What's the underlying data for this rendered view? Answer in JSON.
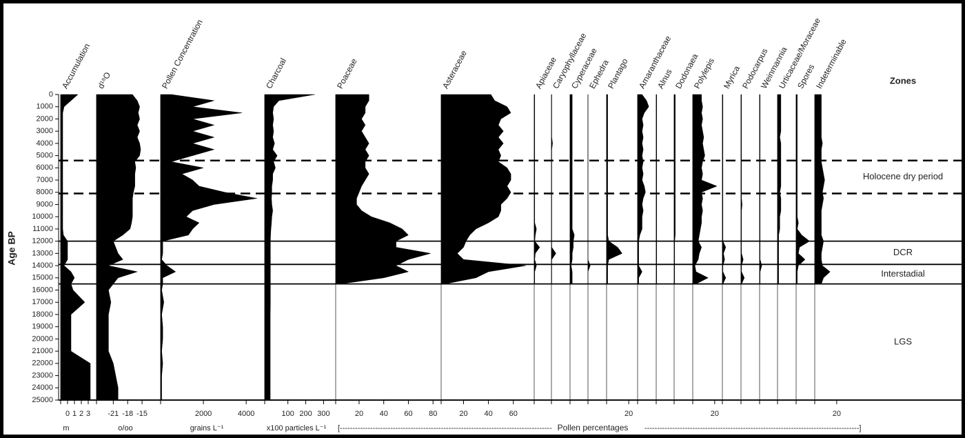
{
  "chart_data": {
    "type": "area",
    "y_label": "Age BP",
    "ylim": [
      0,
      25000
    ],
    "yticks": [
      0,
      1000,
      2000,
      3000,
      4000,
      5000,
      6000,
      7000,
      8000,
      9000,
      10000,
      11000,
      12000,
      13000,
      14000,
      15000,
      16000,
      17000,
      18000,
      19000,
      20000,
      21000,
      22000,
      23000,
      24000,
      25000
    ],
    "zones_title": "Zones",
    "zones": [
      {
        "name": "Holocene dry period",
        "from": 5400,
        "to": 8100,
        "dashed": true
      },
      {
        "name": "DCR",
        "from": 12000,
        "to": 13900,
        "dashed": false
      },
      {
        "name": "Interstadial",
        "from": 13900,
        "to": 15500,
        "dashed": false
      },
      {
        "name": "LGS",
        "from": 15500,
        "to": 25000,
        "dashed": false
      }
    ],
    "color": "#000000",
    "group_label": "Pollen percentages",
    "ages": [
      0,
      500,
      1000,
      1500,
      2000,
      2500,
      3000,
      3500,
      4000,
      4500,
      5000,
      5500,
      6000,
      6500,
      7000,
      7500,
      8000,
      8500,
      9000,
      9500,
      10000,
      10500,
      11000,
      11500,
      12000,
      12500,
      13000,
      13500,
      14000,
      14500,
      15000,
      15500,
      16000,
      17000,
      18000,
      19000,
      20000,
      21000,
      22000,
      23000,
      24000,
      25000
    ],
    "panels": [
      {
        "name": "Accumulation",
        "unit": "m",
        "xlim": [
          -1,
          3.5
        ],
        "xticks": [
          0,
          1,
          2,
          3
        ],
        "values": [
          1.5,
          0.5,
          -0.5,
          -0.7,
          -0.7,
          -0.7,
          -0.7,
          -0.7,
          -0.7,
          -0.7,
          -0.7,
          -0.7,
          -0.7,
          -0.7,
          -0.7,
          -0.7,
          -0.7,
          -0.7,
          -0.7,
          -0.7,
          -0.7,
          -0.7,
          -0.7,
          -0.6,
          0,
          0,
          0,
          0,
          -0.5,
          0.5,
          1,
          0.5,
          0.8,
          2.5,
          0.5,
          0.5,
          0.5,
          0.5,
          3.3,
          3.3,
          3.3,
          3.3
        ]
      },
      {
        "name": "d¹⁸O",
        "unit": "o/oo",
        "xlim": [
          -24.5,
          -13
        ],
        "xticks": [
          -21,
          -18,
          -15
        ],
        "values": [
          -17,
          -16,
          -15.5,
          -15.8,
          -15.5,
          -16,
          -15.5,
          -16,
          -15.5,
          -15.3,
          -15.5,
          -16.5,
          -16.3,
          -16.5,
          -16.5,
          -16.5,
          -16.8,
          -17,
          -17,
          -17,
          -17,
          -17.2,
          -17.5,
          -19,
          -21,
          -20.5,
          -20,
          -19,
          -22,
          -16,
          -20,
          -21,
          -22,
          -21.5,
          -22,
          -22,
          -22,
          -22,
          -21,
          -20.5,
          -20,
          -20
        ]
      },
      {
        "name": "Pollen Concentration",
        "unit": "grains L⁻¹",
        "xlim": [
          0,
          4800
        ],
        "xticks": [
          2000,
          4000
        ],
        "values": [
          500,
          2500,
          1500,
          3800,
          1500,
          2500,
          1500,
          2500,
          1500,
          2500,
          1500,
          500,
          2000,
          1000,
          1500,
          1800,
          3000,
          4500,
          2500,
          1500,
          1200,
          1800,
          1500,
          1300,
          100,
          100,
          100,
          50,
          300,
          700,
          100,
          100,
          50,
          150,
          50,
          100,
          100,
          50,
          100,
          50,
          50,
          50
        ]
      },
      {
        "name": "Charcoal",
        "unit": "x100 particles L⁻¹",
        "xlim": [
          -30,
          360
        ],
        "xticks": [
          100,
          200,
          300
        ],
        "values": [
          250,
          50,
          20,
          15,
          20,
          15,
          20,
          15,
          25,
          15,
          40,
          20,
          30,
          15,
          15,
          10,
          10,
          8,
          10,
          15,
          10,
          8,
          5,
          3,
          2,
          2,
          2,
          2,
          2,
          2,
          2,
          2,
          2,
          2,
          1,
          1,
          1,
          1,
          1,
          1,
          1,
          1
        ]
      },
      {
        "name": "Poaceae",
        "xlim": [
          1,
          81
        ],
        "xticks": [
          20,
          40,
          60,
          80
        ],
        "values": [
          28,
          28,
          25,
          25,
          22,
          25,
          22,
          25,
          28,
          25,
          28,
          25,
          25,
          28,
          25,
          22,
          20,
          18,
          18,
          22,
          30,
          45,
          55,
          60,
          50,
          50,
          78,
          60,
          50,
          60,
          40,
          5,
          null,
          null,
          null,
          null,
          null,
          null,
          null,
          null,
          null,
          null
        ]
      },
      {
        "name": "Asteraceae",
        "xlim": [
          2,
          74
        ],
        "xticks": [
          20,
          40,
          60
        ],
        "values": [
          42,
          45,
          55,
          58,
          50,
          48,
          52,
          48,
          52,
          48,
          50,
          48,
          55,
          58,
          58,
          55,
          58,
          55,
          50,
          50,
          48,
          40,
          30,
          25,
          22,
          20,
          15,
          20,
          70,
          40,
          30,
          5,
          null,
          null,
          null,
          null,
          null,
          null,
          null,
          null,
          null,
          null
        ]
      },
      {
        "name": "Apiaceae",
        "xlim": [
          0,
          15
        ],
        "xticks": [],
        "values": [
          0.5,
          0.5,
          0.5,
          0.5,
          0.5,
          0.5,
          0.5,
          0.5,
          0.5,
          0.5,
          0.5,
          0.5,
          0.5,
          0.5,
          0.5,
          0.5,
          0.5,
          0.5,
          0.5,
          0.5,
          0.5,
          0.5,
          2,
          1,
          0.5,
          5,
          1,
          0.5,
          2,
          0.5,
          0.5,
          0.5,
          null,
          null,
          null,
          null,
          null,
          null,
          null,
          null,
          null,
          null
        ]
      },
      {
        "name": "Caryophyllaceae",
        "xlim": [
          0,
          16
        ],
        "xticks": [],
        "values": [
          0.3,
          0.3,
          0.3,
          0.3,
          0.3,
          0.3,
          0.3,
          0.3,
          1,
          0.3,
          0.3,
          0.3,
          0.3,
          0.3,
          0.3,
          0.3,
          0.3,
          0.3,
          0.3,
          0.3,
          0.3,
          0.3,
          0.3,
          0.3,
          0.3,
          0.3,
          4,
          0.3,
          0.3,
          0.3,
          0.3,
          0.3,
          null,
          null,
          null,
          null,
          null,
          null,
          null,
          null,
          null,
          null
        ]
      },
      {
        "name": "Cyperaceae",
        "xlim": [
          0,
          16
        ],
        "xticks": [],
        "values": [
          2,
          2,
          2,
          2,
          2,
          2,
          2,
          2,
          2,
          2,
          2,
          2,
          2,
          2,
          2,
          2,
          2,
          2,
          2,
          2,
          2,
          2,
          2,
          4,
          3,
          3,
          2,
          2,
          1,
          2,
          2,
          2,
          null,
          null,
          null,
          null,
          null,
          null,
          null,
          null,
          null,
          null
        ]
      },
      {
        "name": "Ephedra",
        "xlim": [
          0,
          16
        ],
        "xticks": [],
        "values": [
          0,
          0,
          0,
          0,
          0,
          0,
          0,
          0,
          0,
          0,
          0,
          0,
          0,
          0,
          0,
          0,
          0,
          0,
          0,
          0,
          0,
          0,
          0,
          0,
          0,
          0,
          0,
          0,
          2,
          0,
          0,
          0,
          null,
          null,
          null,
          null,
          null,
          null,
          null,
          null,
          null,
          null
        ]
      },
      {
        "name": "Plantago",
        "xlim": [
          0,
          28
        ],
        "xticks": [
          20
        ],
        "values": [
          1,
          1,
          1,
          1,
          1,
          1,
          1,
          1,
          1,
          1,
          1,
          1,
          1,
          1,
          1,
          1,
          1,
          1,
          1,
          1,
          1,
          1,
          1,
          1,
          2,
          10,
          14,
          2,
          1,
          1,
          1,
          1,
          null,
          null,
          null,
          null,
          null,
          null,
          null,
          null,
          null,
          null
        ]
      },
      {
        "name": "Amaranthaceae",
        "xlim": [
          0,
          16
        ],
        "xticks": [],
        "values": [
          4,
          8,
          10,
          6,
          4,
          5,
          4,
          5,
          4,
          5,
          4,
          5,
          4,
          5,
          4,
          6,
          7,
          5,
          4,
          5,
          4,
          4,
          4,
          2,
          1,
          1,
          1,
          1,
          1,
          4,
          1,
          1,
          null,
          null,
          null,
          null,
          null,
          null,
          null,
          null,
          null,
          null
        ]
      },
      {
        "name": "Alnus",
        "xlim": [
          0,
          16
        ],
        "xticks": [],
        "values": [
          0.5,
          0.5,
          0.5,
          0.5,
          0.5,
          0.5,
          0.5,
          0.5,
          0.5,
          0.5,
          0.5,
          0.5,
          0.5,
          0.5,
          0.5,
          0.5,
          0.5,
          0.5,
          0.5,
          0.5,
          0.5,
          0.5,
          0.5,
          0.5,
          0.5,
          0.5,
          0.5,
          0.5,
          0.5,
          0.5,
          0.5,
          0.5,
          null,
          null,
          null,
          null,
          null,
          null,
          null,
          null,
          null,
          null
        ]
      },
      {
        "name": "Dodonaea",
        "xlim": [
          0,
          16
        ],
        "xticks": [],
        "values": [
          1,
          1,
          1,
          1,
          1,
          1,
          1,
          1,
          1,
          1,
          1,
          1,
          1,
          1,
          1,
          1,
          1,
          1,
          1,
          1,
          1,
          1,
          1,
          1,
          0.5,
          0.5,
          0.5,
          0.5,
          0.5,
          0.5,
          0.5,
          0.5,
          null,
          null,
          null,
          null,
          null,
          null,
          null,
          null,
          null,
          null
        ]
      },
      {
        "name": "Polylepis",
        "xlim": [
          0,
          27
        ],
        "xticks": [
          20
        ],
        "values": [
          8,
          8,
          9,
          8,
          9,
          8,
          9,
          10,
          9,
          10,
          11,
          9,
          8,
          9,
          8,
          22,
          8,
          9,
          8,
          9,
          8,
          8,
          7,
          6,
          5,
          8,
          6,
          5,
          2,
          3,
          14,
          3,
          null,
          null,
          null,
          null,
          null,
          null,
          null,
          null,
          null,
          null
        ]
      },
      {
        "name": "Myrica",
        "xlim": [
          0,
          16
        ],
        "xticks": [],
        "values": [
          0.5,
          0.5,
          0.5,
          0.5,
          0.5,
          0.5,
          0.5,
          0.5,
          0.5,
          0.5,
          0.5,
          0.5,
          0.5,
          0.5,
          0.5,
          0.5,
          0.5,
          0.5,
          0.5,
          0.5,
          0.5,
          0.5,
          0.5,
          0.5,
          0.5,
          3,
          1,
          2,
          0.5,
          0.5,
          3,
          0.5,
          null,
          null,
          null,
          null,
          null,
          null,
          null,
          null,
          null,
          null
        ]
      },
      {
        "name": "Podocarpus",
        "xlim": [
          0,
          16
        ],
        "xticks": [],
        "values": [
          0.5,
          0.5,
          0.5,
          0.5,
          0.5,
          0.5,
          0.5,
          0.5,
          0.5,
          0.5,
          0.5,
          0.5,
          0.5,
          0.5,
          0.5,
          0.5,
          0.5,
          0.5,
          1,
          0.5,
          0.5,
          0.5,
          0.5,
          0.5,
          0.5,
          0.5,
          0.5,
          2,
          0.5,
          0.5,
          3,
          0.5,
          null,
          null,
          null,
          null,
          null,
          null,
          null,
          null,
          null,
          null
        ]
      },
      {
        "name": "Weinmannia",
        "xlim": [
          0,
          16
        ],
        "xticks": [],
        "values": [
          0.5,
          0.5,
          0.5,
          0.5,
          0.5,
          0.5,
          0.5,
          0.5,
          0.5,
          0.5,
          0.5,
          0.5,
          0.5,
          0.5,
          0.5,
          0.5,
          0.5,
          0.5,
          0.5,
          0.5,
          0.5,
          0.5,
          0.5,
          0.5,
          0.5,
          0.5,
          0.5,
          0.5,
          2,
          0.5,
          0.5,
          0.5,
          null,
          null,
          null,
          null,
          null,
          null,
          null,
          null,
          null,
          null
        ]
      },
      {
        "name": "Urticaceae/Moraceae",
        "xlim": [
          0,
          16
        ],
        "xticks": [],
        "values": [
          3,
          3,
          3,
          3,
          3,
          3,
          3,
          2,
          3,
          3,
          3,
          3,
          3,
          3,
          3,
          3,
          2,
          3,
          3,
          3,
          2,
          2,
          2,
          1,
          1,
          1,
          1,
          1,
          1,
          1,
          1,
          1,
          null,
          null,
          null,
          null,
          null,
          null,
          null,
          null,
          null,
          null
        ]
      },
      {
        "name": "Spores",
        "xlim": [
          0,
          16
        ],
        "xticks": [],
        "values": [
          1,
          1,
          1,
          1,
          1,
          1,
          1,
          1,
          1,
          1,
          1,
          1,
          1,
          1,
          1,
          1,
          1,
          1,
          1,
          1,
          1,
          2,
          1,
          5,
          12,
          3,
          2,
          8,
          2,
          1,
          1,
          1,
          null,
          null,
          null,
          null,
          null,
          null,
          null,
          null,
          null,
          null
        ]
      },
      {
        "name": "Indeterminable",
        "xlim": [
          0,
          27
        ],
        "xticks": [
          20
        ],
        "values": [
          6,
          6,
          6,
          6,
          6,
          6,
          6,
          6,
          7,
          6,
          6,
          6,
          7,
          8,
          9,
          8,
          7,
          8,
          7,
          6,
          6,
          6,
          6,
          6,
          8,
          7,
          6,
          6,
          7,
          14,
          8,
          6,
          null,
          null,
          null,
          null,
          null,
          null,
          null,
          null,
          null,
          null
        ]
      }
    ]
  }
}
